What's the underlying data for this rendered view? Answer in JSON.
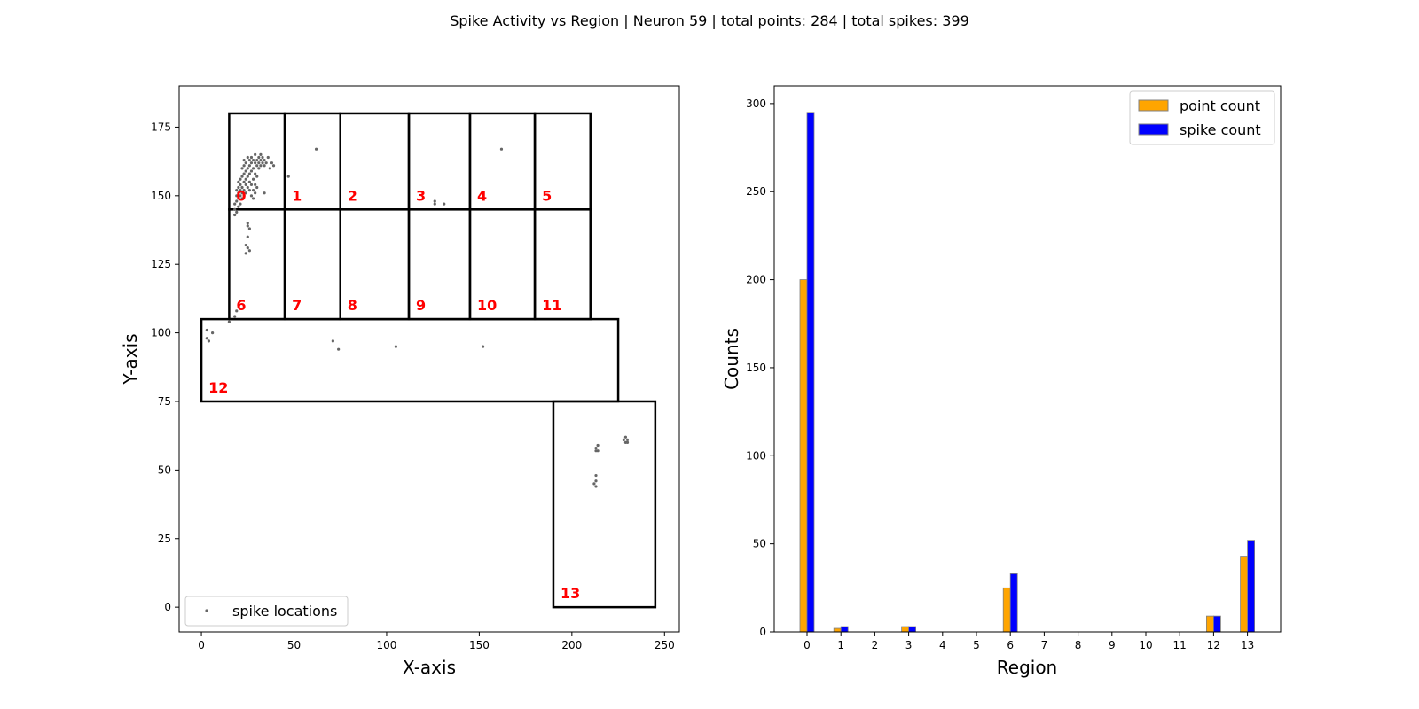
{
  "figure": {
    "title": "Spike Activity vs Region | Neuron 59 | total points: 284 | total spikes: 399"
  },
  "chart_data": [
    {
      "type": "scatter",
      "xlabel": "X-axis",
      "ylabel": "Y-axis",
      "xlim": [
        -12,
        258
      ],
      "ylim": [
        -9,
        190
      ],
      "xticks": [
        0,
        50,
        100,
        150,
        200,
        250
      ],
      "yticks": [
        0,
        25,
        50,
        75,
        100,
        125,
        150,
        175
      ],
      "legend": {
        "placement": "lower-left",
        "entries": [
          "spike locations"
        ]
      },
      "series": [
        {
          "name": "spike locations",
          "color": "#666666",
          "points": [
            [
              18,
              143
            ],
            [
              18,
              145
            ],
            [
              18,
              147
            ],
            [
              19,
              144
            ],
            [
              19,
              148
            ],
            [
              19,
              150
            ],
            [
              19,
              152
            ],
            [
              20,
              146
            ],
            [
              20,
              149
            ],
            [
              20,
              151
            ],
            [
              20,
              153
            ],
            [
              20,
              155
            ],
            [
              21,
              147
            ],
            [
              21,
              150
            ],
            [
              21,
              152
            ],
            [
              21,
              154
            ],
            [
              21,
              156
            ],
            [
              22,
              149
            ],
            [
              22,
              151
            ],
            [
              22,
              153
            ],
            [
              22,
              157
            ],
            [
              22,
              160
            ],
            [
              23,
              150
            ],
            [
              23,
              152
            ],
            [
              23,
              155
            ],
            [
              23,
              158
            ],
            [
              23,
              161
            ],
            [
              23,
              163
            ],
            [
              24,
              151
            ],
            [
              24,
              154
            ],
            [
              24,
              156
            ],
            [
              24,
              159
            ],
            [
              24,
              162
            ],
            [
              25,
              153
            ],
            [
              25,
              157
            ],
            [
              25,
              160
            ],
            [
              25,
              164
            ],
            [
              26,
              152
            ],
            [
              26,
              155
            ],
            [
              26,
              158
            ],
            [
              26,
              161
            ],
            [
              26,
              163
            ],
            [
              27,
              150
            ],
            [
              27,
              154
            ],
            [
              27,
              159
            ],
            [
              27,
              162
            ],
            [
              27,
              164
            ],
            [
              28,
              149
            ],
            [
              28,
              152
            ],
            [
              28,
              156
            ],
            [
              28,
              160
            ],
            [
              28,
              163
            ],
            [
              29,
              151
            ],
            [
              29,
              154
            ],
            [
              29,
              158
            ],
            [
              29,
              162
            ],
            [
              29,
              165
            ],
            [
              30,
              153
            ],
            [
              30,
              157
            ],
            [
              30,
              161
            ],
            [
              30,
              163
            ],
            [
              31,
              160
            ],
            [
              31,
              162
            ],
            [
              31,
              164
            ],
            [
              32,
              161
            ],
            [
              32,
              163
            ],
            [
              32,
              165
            ],
            [
              33,
              162
            ],
            [
              33,
              164
            ],
            [
              34,
              161
            ],
            [
              34,
              163
            ],
            [
              35,
              162
            ],
            [
              36,
              164
            ],
            [
              37,
              160
            ],
            [
              38,
              162
            ],
            [
              39,
              161
            ],
            [
              34,
              151
            ],
            [
              25,
              140
            ],
            [
              25,
              139
            ],
            [
              26,
              138
            ],
            [
              25,
              135
            ],
            [
              24,
              132
            ],
            [
              25,
              131
            ],
            [
              24,
              129
            ],
            [
              26,
              130
            ],
            [
              19,
              108
            ],
            [
              47,
              157
            ],
            [
              62,
              167
            ],
            [
              126,
              148
            ],
            [
              126,
              147
            ],
            [
              131,
              147
            ],
            [
              162,
              167
            ],
            [
              3,
              101
            ],
            [
              3,
              98
            ],
            [
              4,
              97
            ],
            [
              6,
              100
            ],
            [
              15,
              104
            ],
            [
              18,
              106
            ],
            [
              71,
              97
            ],
            [
              74,
              94
            ],
            [
              105,
              95
            ],
            [
              152,
              95
            ],
            [
              213,
              58
            ],
            [
              213,
              57
            ],
            [
              214,
              57
            ],
            [
              214,
              59
            ],
            [
              213,
              48
            ],
            [
              213,
              46
            ],
            [
              212,
              45
            ],
            [
              213,
              44
            ],
            [
              228,
              61
            ],
            [
              229,
              60
            ],
            [
              229,
              62
            ],
            [
              230,
              61
            ],
            [
              230,
              60
            ]
          ]
        }
      ],
      "regions": [
        {
          "label": "0",
          "x": [
            15,
            45
          ],
          "y": [
            145,
            180
          ]
        },
        {
          "label": "1",
          "x": [
            45,
            75
          ],
          "y": [
            145,
            180
          ]
        },
        {
          "label": "2",
          "x": [
            75,
            112
          ],
          "y": [
            145,
            180
          ]
        },
        {
          "label": "3",
          "x": [
            112,
            145
          ],
          "y": [
            145,
            180
          ]
        },
        {
          "label": "4",
          "x": [
            145,
            180
          ],
          "y": [
            145,
            180
          ]
        },
        {
          "label": "5",
          "x": [
            180,
            210
          ],
          "y": [
            145,
            180
          ]
        },
        {
          "label": "6",
          "x": [
            15,
            45
          ],
          "y": [
            105,
            145
          ]
        },
        {
          "label": "7",
          "x": [
            45,
            75
          ],
          "y": [
            105,
            145
          ]
        },
        {
          "label": "8",
          "x": [
            75,
            112
          ],
          "y": [
            105,
            145
          ]
        },
        {
          "label": "9",
          "x": [
            112,
            145
          ],
          "y": [
            105,
            145
          ]
        },
        {
          "label": "10",
          "x": [
            145,
            180
          ],
          "y": [
            105,
            145
          ]
        },
        {
          "label": "11",
          "x": [
            180,
            210
          ],
          "y": [
            105,
            145
          ]
        },
        {
          "label": "12",
          "x": [
            0,
            225
          ],
          "y": [
            75,
            105
          ]
        },
        {
          "label": "13",
          "x": [
            190,
            245
          ],
          "y": [
            0,
            75
          ]
        }
      ]
    },
    {
      "type": "bar",
      "xlabel": "Region",
      "ylabel": "Counts",
      "ylim": [
        0,
        310
      ],
      "yticks": [
        0,
        50,
        100,
        150,
        200,
        250,
        300
      ],
      "categories": [
        "0",
        "1",
        "2",
        "3",
        "4",
        "5",
        "6",
        "7",
        "8",
        "9",
        "10",
        "11",
        "12",
        "13"
      ],
      "legend": {
        "placement": "top-right",
        "entries": [
          "point count",
          "spike count"
        ]
      },
      "series": [
        {
          "name": "point count",
          "color": "#ffa500",
          "values": [
            200,
            2,
            0,
            3,
            0,
            0,
            25,
            0,
            0,
            0,
            0,
            0,
            9,
            43
          ]
        },
        {
          "name": "spike count",
          "color": "#0000ff",
          "values": [
            295,
            3,
            0,
            3,
            0,
            0,
            33,
            0,
            0,
            0,
            0,
            0,
            9,
            52
          ]
        }
      ]
    }
  ]
}
